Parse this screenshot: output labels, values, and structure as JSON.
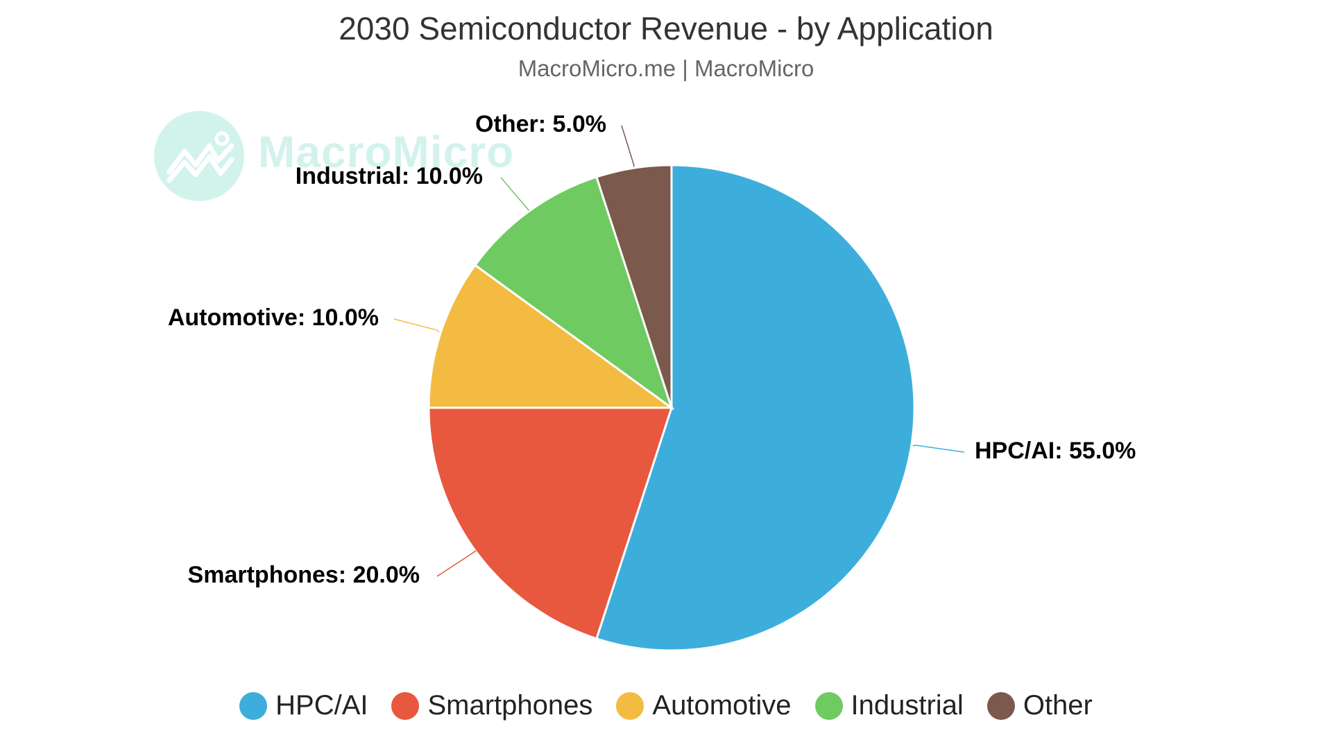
{
  "header": {
    "title": "2030 Semiconductor Revenue - by Application",
    "subtitle": "MacroMicro.me | MacroMicro"
  },
  "watermark": {
    "text": "MacroMicro",
    "icon": "line-chart-icon"
  },
  "chart_data": {
    "type": "pie",
    "title": "2030 Semiconductor Revenue - by Application",
    "subtitle": "MacroMicro.me | MacroMicro",
    "unit": "%",
    "slices": [
      {
        "name": "HPC/AI",
        "value": 55.0,
        "label": "HPC/AI: 55.0%",
        "color": "#3daedb"
      },
      {
        "name": "Smartphones",
        "value": 20.0,
        "label": "Smartphones: 20.0%",
        "color": "#e8583e"
      },
      {
        "name": "Automotive",
        "value": 10.0,
        "label": "Automotive: 10.0%",
        "color": "#f4bb43"
      },
      {
        "name": "Industrial",
        "value": 10.0,
        "label": "Industrial: 10.0%",
        "color": "#6fca62"
      },
      {
        "name": "Other",
        "value": 5.0,
        "label": "Other: 5.0%",
        "color": "#7b594c"
      }
    ],
    "start_angle": "12 o'clock",
    "direction": "clockwise",
    "legend_position": "bottom"
  }
}
